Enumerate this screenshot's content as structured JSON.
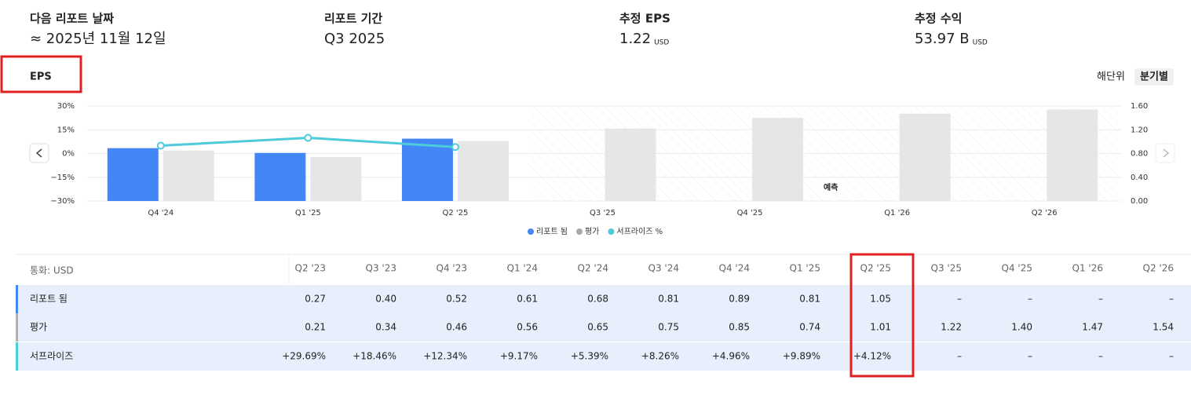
{
  "stats": [
    {
      "label": "다음 리포트 날짜",
      "value": "≈ 2025년 11월 12일"
    },
    {
      "label": "리포트 기간",
      "value": "Q3 2025"
    },
    {
      "label": "추정 EPS",
      "value": "1.22",
      "unit": "USD"
    },
    {
      "label": "추정 수익",
      "value": "53.97 B",
      "unit": "USD"
    }
  ],
  "tab": "EPS",
  "toggles": [
    "해단위",
    "분기별"
  ],
  "chart_data": {
    "type": "bar",
    "categories": [
      "Q4 '24",
      "Q1 '25",
      "Q2 '25",
      "Q3 '25",
      "Q4 '25",
      "Q1 '26",
      "Q2 '26"
    ],
    "series": [
      {
        "name": "리포트 됨",
        "color": "#4287f5",
        "axis": "y2",
        "values": [
          0.89,
          0.81,
          1.05,
          null,
          null,
          null,
          null
        ]
      },
      {
        "name": "평가",
        "color": "#e6e6e6",
        "axis": "y2",
        "values": [
          0.85,
          0.74,
          1.01,
          1.22,
          1.4,
          1.47,
          1.54
        ]
      },
      {
        "name": "서프라이즈 %",
        "color": "#4ecbdb",
        "type": "line",
        "values": [
          4.96,
          9.89,
          4.12,
          null,
          null,
          null,
          null
        ]
      }
    ],
    "ylim": [
      -30,
      30
    ],
    "yticks": [
      {
        "value": 30,
        "label": "30%"
      },
      {
        "value": 15,
        "label": "15%"
      },
      {
        "value": 0,
        "label": "0%"
      },
      {
        "value": -15,
        "label": "−15%"
      },
      {
        "value": -30,
        "label": "−30%"
      }
    ],
    "y2lim": [
      0,
      1.6
    ],
    "y2ticks": [
      {
        "value": 1.6,
        "label": "1.60"
      },
      {
        "value": 1.2,
        "label": "1.20"
      },
      {
        "value": 0.8,
        "label": "0.80"
      },
      {
        "value": 0.4,
        "label": "0.40"
      },
      {
        "value": 0,
        "label": "0.00"
      }
    ],
    "grid": true,
    "annotation": "예측"
  },
  "table": {
    "currency": "통화: USD",
    "columns": [
      "Q2 '23",
      "Q3 '23",
      "Q4 '23",
      "Q1 '24",
      "Q2 '24",
      "Q3 '24",
      "Q4 '24",
      "Q1 '25",
      "Q2 '25",
      "Q3 '25",
      "Q4 '25",
      "Q1 '26",
      "Q2 '26"
    ],
    "rows": [
      {
        "label": "리포트 됨",
        "cells": [
          "0.27",
          "0.40",
          "0.52",
          "0.61",
          "0.68",
          "0.81",
          "0.89",
          "0.81",
          "1.05",
          "–",
          "–",
          "–",
          "–"
        ]
      },
      {
        "label": "평가",
        "cells": [
          "0.21",
          "0.34",
          "0.46",
          "0.56",
          "0.65",
          "0.75",
          "0.85",
          "0.74",
          "1.01",
          "1.22",
          "1.40",
          "1.47",
          "1.54"
        ]
      },
      {
        "label": "서프라이즈",
        "cells": [
          "+29.69%",
          "+18.46%",
          "+12.34%",
          "+9.17%",
          "+5.39%",
          "+8.26%",
          "+4.96%",
          "+9.89%",
          "+4.12%",
          "–",
          "–",
          "–",
          "–"
        ]
      }
    ]
  }
}
